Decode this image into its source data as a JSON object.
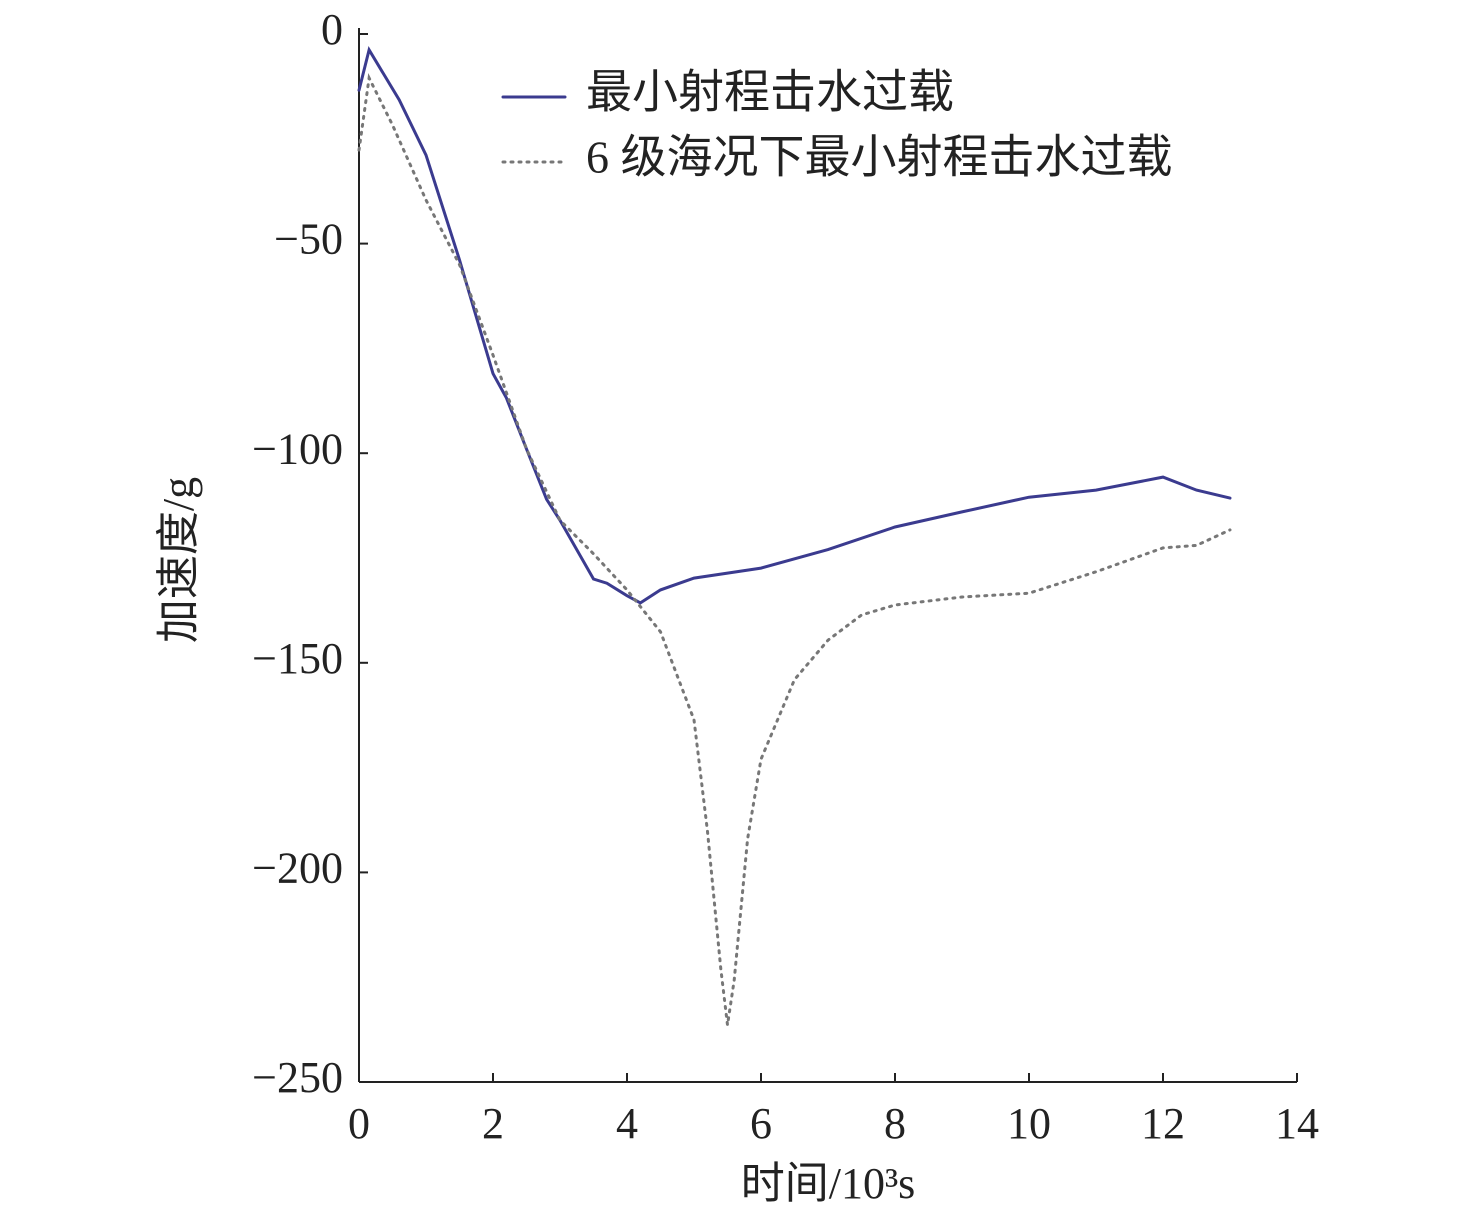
{
  "chart_data": {
    "type": "line",
    "xlabel": "时间/10³s",
    "ylabel": "加速度/g",
    "xlim": [
      0,
      14
    ],
    "ylim": [
      -250,
      0
    ],
    "xticks": [
      0,
      2,
      4,
      6,
      8,
      10,
      12,
      14
    ],
    "yticks": [
      {
        "value": 0,
        "label": "0"
      },
      {
        "value": -50,
        "label": "−50"
      },
      {
        "value": -100,
        "label": "−100"
      },
      {
        "value": -150,
        "label": "−150"
      },
      {
        "value": -200,
        "label": "−200"
      },
      {
        "value": -250,
        "label": "−250"
      }
    ],
    "grid": false,
    "legend": "top-right",
    "series": [
      {
        "name": "最小射程击水过载",
        "color": "#3b3b8f",
        "style": "solid",
        "x": [
          0,
          0.15,
          0.6,
          1,
          1.5,
          2,
          2.2,
          2.5,
          2.8,
          3,
          3.5,
          3.7,
          4,
          4.2,
          4.5,
          5,
          6,
          7,
          8,
          9,
          10,
          11,
          12,
          12.5,
          13
        ],
        "values": [
          -13.4,
          -3.8,
          -15.7,
          -28.9,
          -53.9,
          -81,
          -86.8,
          -99,
          -111,
          -116,
          -130,
          -131,
          -134,
          -135.7,
          -132.6,
          -129.8,
          -127.4,
          -123,
          -117.6,
          -114,
          -110.5,
          -108.8,
          -105.7,
          -108.8,
          -110.7
        ]
      },
      {
        "name": "6 级海况下最小射程击水过载",
        "color": "#777777",
        "style": "dotted",
        "x": [
          0,
          0.15,
          0.5,
          1,
          1.5,
          2,
          2.5,
          3,
          3.5,
          4,
          4.5,
          5,
          5.2,
          5.4,
          5.5,
          5.6,
          5.8,
          6,
          6.5,
          7,
          7.5,
          8,
          9,
          10,
          11,
          12,
          12.5,
          13
        ],
        "values": [
          -27.7,
          -10.5,
          -21.7,
          -39.6,
          -55,
          -76.6,
          -99,
          -116,
          -124,
          -132.6,
          -142.6,
          -163.6,
          -190,
          -223,
          -236.4,
          -225.7,
          -192,
          -173,
          -154,
          -144.6,
          -138.6,
          -136.2,
          -134.3,
          -133.4,
          -128.3,
          -122.6,
          -122,
          -118.3
        ]
      }
    ]
  }
}
